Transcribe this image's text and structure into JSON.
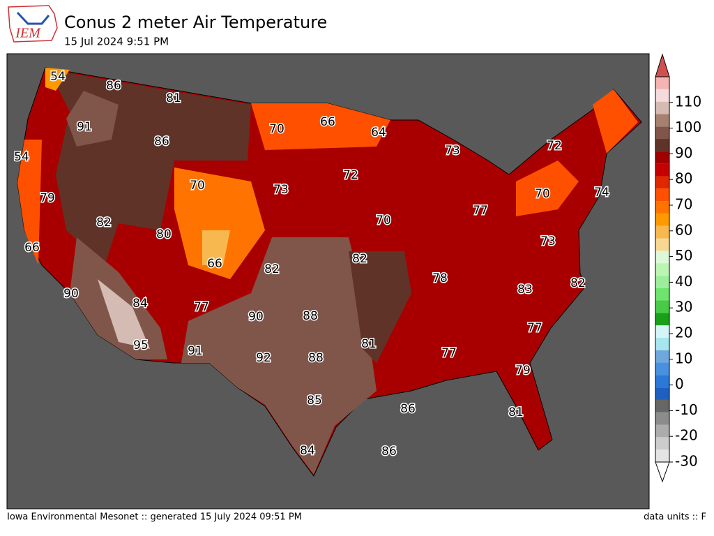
{
  "header": {
    "logo": "IEM",
    "title": "Conus 2 meter Air Temperature",
    "subtitle": "15 Jul 2024 9:51 PM"
  },
  "map": {
    "labels": [
      54,
      86,
      81,
      91,
      70,
      66,
      64,
      86,
      73,
      72,
      54,
      72,
      70,
      73,
      70,
      74,
      79,
      77,
      82,
      70,
      80,
      73,
      66,
      66,
      82,
      82,
      78,
      82,
      90,
      84,
      83,
      77,
      90,
      88,
      77,
      95,
      81,
      77,
      91,
      92,
      88,
      79,
      85,
      86,
      81,
      84,
      86
    ]
  },
  "colorbar": {
    "lim": [
      -30,
      120
    ],
    "ticks": [
      -30,
      -20,
      -10,
      0,
      10,
      20,
      30,
      40,
      50,
      60,
      70,
      80,
      90,
      100,
      110
    ],
    "colors": [
      "#e4e4e4",
      "#cccccc",
      "#acacac",
      "#8c8c8c",
      "#666666",
      "#1f5fc0",
      "#2a78d8",
      "#4a90e0",
      "#6fa8dc",
      "#a8e6ee",
      "#d4f4f8",
      "#18a018",
      "#48cc48",
      "#6ee36e",
      "#9cee9c",
      "#bcf4b4",
      "#dcf8d8",
      "#f8d890",
      "#f8b850",
      "#ff9900",
      "#ff7400",
      "#ff5000",
      "#e02800",
      "#c40000",
      "#a00000",
      "#603328",
      "#80564a",
      "#a88070",
      "#d4bcb4",
      "#f4dcdc",
      "#f4b4b4",
      "#e88080",
      "#d05050"
    ]
  },
  "footer": {
    "left": "Iowa Environmental Mesonet :: generated 15 July 2024 09:51 PM",
    "right": "data units :: F"
  }
}
